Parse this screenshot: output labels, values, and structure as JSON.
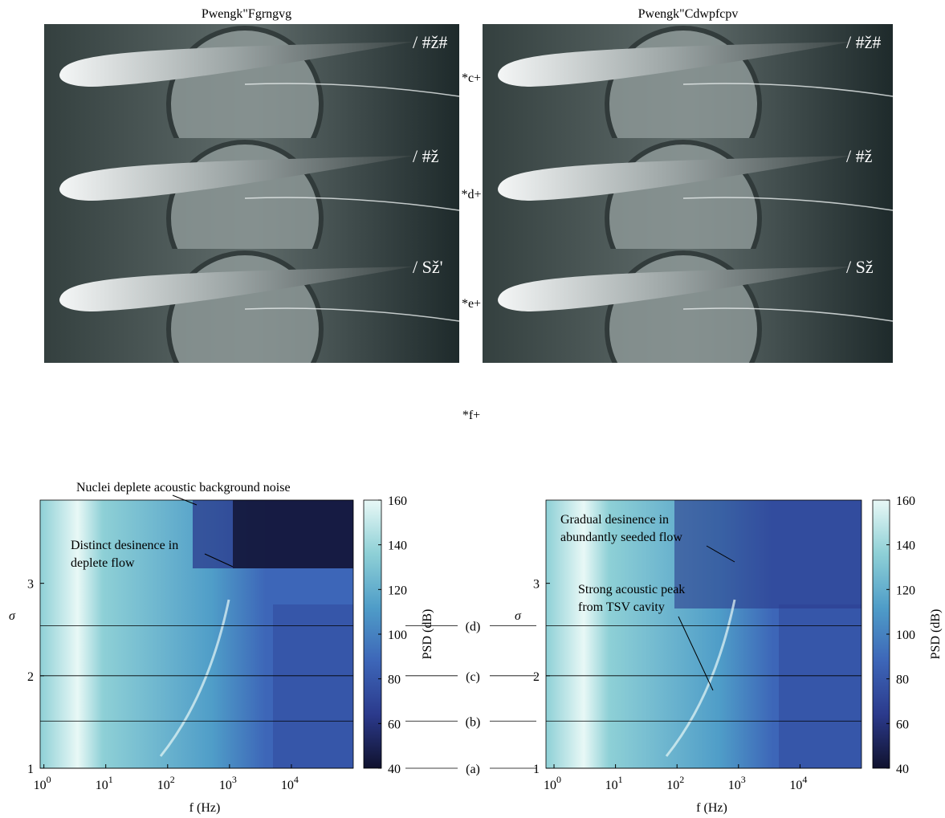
{
  "photos": {
    "columns": [
      "Pwengk\"Fgrngvg",
      "Pwengk\"Cdwpfcpv"
    ],
    "rows": [
      {
        "label": "*c+",
        "tags": [
          "/ #ž#",
          "/ #ž#"
        ]
      },
      {
        "label": "*d+",
        "tags": [
          "/ #ž",
          "/ #ž"
        ]
      },
      {
        "label": "*e+",
        "tags": [
          "/ Sž'",
          "/ Sž"
        ]
      }
    ],
    "panel_label": "*f+"
  },
  "levels": [
    {
      "label": "(d)",
      "value": 2.54
    },
    {
      "label": "(c)",
      "value": 2.0
    },
    {
      "label": "(b)",
      "value": 1.51
    },
    {
      "label": "(a)",
      "value": 1.0
    }
  ],
  "chart_data": [
    {
      "type": "heatmap",
      "xlabel": "f (Hz)",
      "ylabel": "σ",
      "xscale": "log",
      "xlim": [
        0.87,
        100000
      ],
      "ylim": [
        1,
        3.9
      ],
      "xticks": [
        {
          "value": 1,
          "label": "10",
          "sup": "0"
        },
        {
          "value": 10,
          "label": "10",
          "sup": "1"
        },
        {
          "value": 100,
          "label": "10",
          "sup": "2"
        },
        {
          "value": 1000,
          "label": "10",
          "sup": "3"
        },
        {
          "value": 10000,
          "label": "10",
          "sup": "4"
        }
      ],
      "yticks": [
        1,
        2,
        3
      ],
      "colorbar": {
        "label": "PSD (dB)",
        "lim": [
          40,
          160
        ],
        "ticks": [
          40,
          60,
          80,
          100,
          120,
          140,
          160
        ],
        "colors": [
          "#10122e",
          "#2b3a8c",
          "#3d66b8",
          "#4f9dc8",
          "#8ed0d6",
          "#e8f8f6"
        ]
      },
      "annotations": [
        {
          "lines": [
            "Nuclei deplete acoustic background noise"
          ]
        },
        {
          "lines": [
            "Distinct desinence in",
            "deplete flow"
          ]
        }
      ]
    },
    {
      "type": "heatmap",
      "xlabel": "f (Hz)",
      "ylabel": "σ",
      "xscale": "log",
      "xlim": [
        0.74,
        100000
      ],
      "ylim": [
        1,
        3.9
      ],
      "xticks": [
        {
          "value": 1,
          "label": "10",
          "sup": "0"
        },
        {
          "value": 10,
          "label": "10",
          "sup": "1"
        },
        {
          "value": 100,
          "label": "10",
          "sup": "2"
        },
        {
          "value": 1000,
          "label": "10",
          "sup": "3"
        },
        {
          "value": 10000,
          "label": "10",
          "sup": "4"
        }
      ],
      "yticks": [
        1,
        2,
        3
      ],
      "colorbar": {
        "label": "PSD (dB)",
        "lim": [
          40,
          160
        ],
        "ticks": [
          40,
          60,
          80,
          100,
          120,
          140,
          160
        ],
        "colors": [
          "#10122e",
          "#2b3a8c",
          "#3d66b8",
          "#4f9dc8",
          "#8ed0d6",
          "#e8f8f6"
        ]
      },
      "annotations": [
        {
          "lines": [
            "Gradual desinence in",
            "abundantly seeded flow"
          ]
        },
        {
          "lines": [
            "Strong acoustic peak",
            "from TSV cavity"
          ]
        }
      ]
    }
  ]
}
